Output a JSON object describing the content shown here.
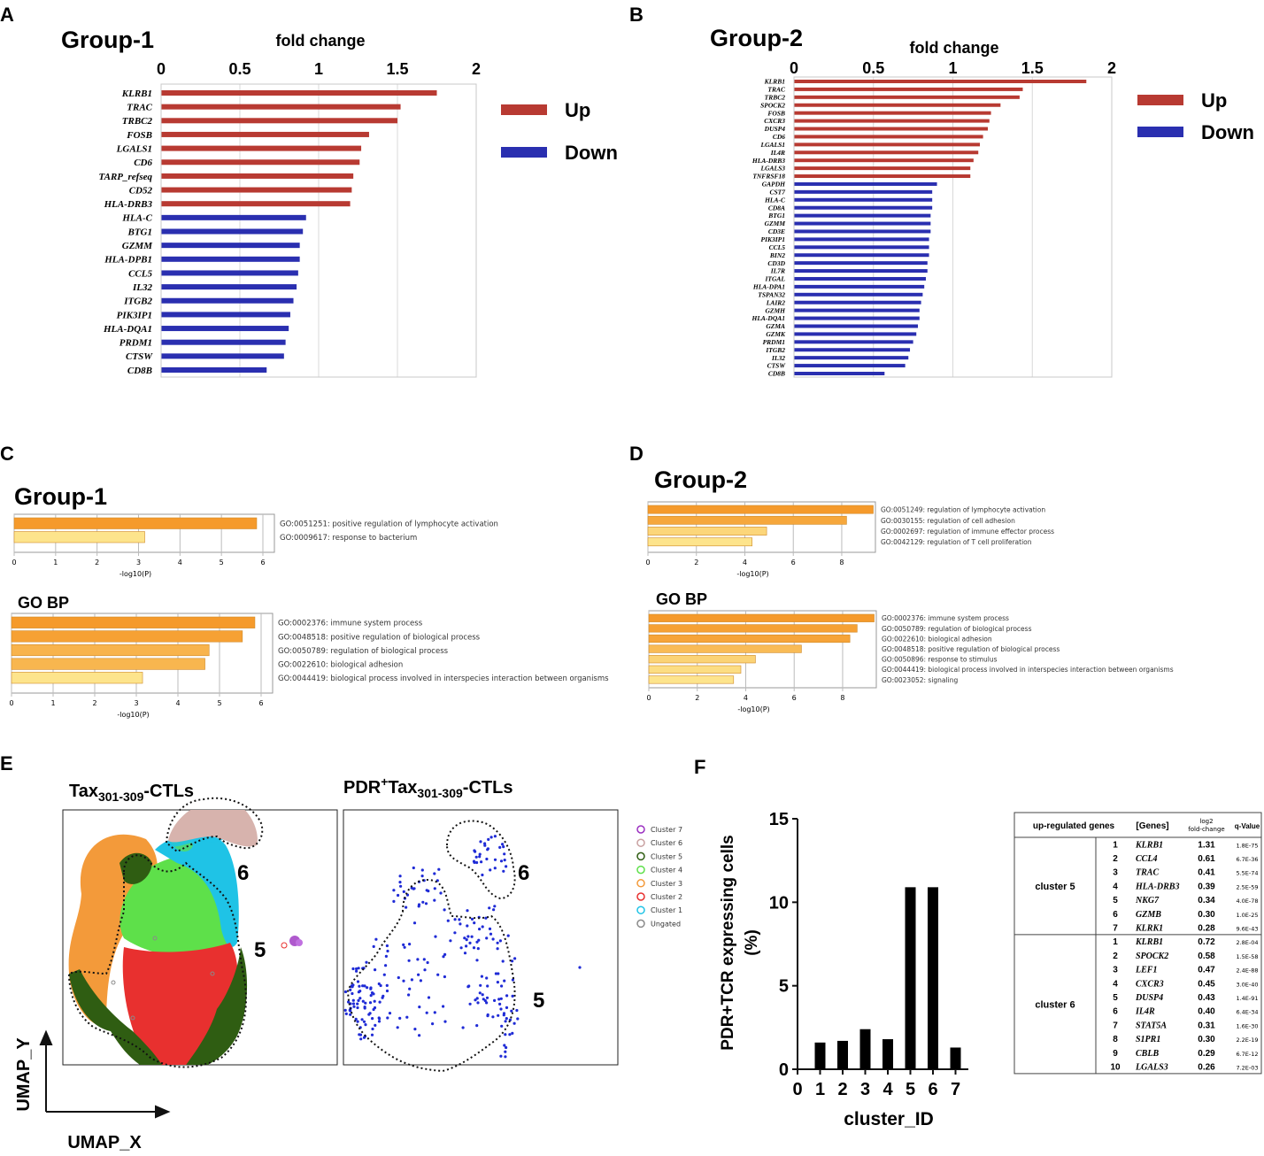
{
  "colors": {
    "up": "#b83a32",
    "down": "#2a2fb0",
    "orange_dark": "#f59a2b",
    "orange_light": "#fde48c",
    "scatter_blue": "#1f2bd6"
  },
  "panel_labels": {
    "a": "A",
    "b": "B",
    "c": "C",
    "d": "D",
    "e": "E",
    "f": "F"
  },
  "chart_data": [
    {
      "id": "A",
      "type": "bar",
      "orientation": "horizontal",
      "title": "Group-1",
      "xlabel": "fold change",
      "xticks": [
        "0",
        "0.5",
        "1",
        "1.5",
        "2"
      ],
      "xlim": [
        0,
        2
      ],
      "legend": [
        {
          "name": "Up",
          "color": "#b83a32"
        },
        {
          "name": "Down",
          "color": "#2a2fb0"
        }
      ],
      "categories": [
        "KLRB1",
        "TRAC",
        "TRBC2",
        "FOSB",
        "LGALS1",
        "CD6",
        "TARP_refseq",
        "CD52",
        "HLA-DRB3",
        "HLA-C",
        "BTG1",
        "GZMM",
        "HLA-DPB1",
        "CCL5",
        "IL32",
        "ITGB2",
        "PIK3IP1",
        "HLA-DQA1",
        "PRDM1",
        "CTSW",
        "CD8B"
      ],
      "values": [
        1.75,
        1.52,
        1.5,
        1.32,
        1.27,
        1.26,
        1.22,
        1.21,
        1.2,
        0.92,
        0.9,
        0.88,
        0.88,
        0.87,
        0.86,
        0.84,
        0.82,
        0.81,
        0.79,
        0.78,
        0.67
      ],
      "direction": [
        "up",
        "up",
        "up",
        "up",
        "up",
        "up",
        "up",
        "up",
        "up",
        "down",
        "down",
        "down",
        "down",
        "down",
        "down",
        "down",
        "down",
        "down",
        "down",
        "down",
        "down"
      ]
    },
    {
      "id": "B",
      "type": "bar",
      "orientation": "horizontal",
      "title": "Group-2",
      "xlabel": "fold change",
      "xticks": [
        "0",
        "0.5",
        "1",
        "1.5",
        "2"
      ],
      "xlim": [
        0,
        2
      ],
      "legend": [
        {
          "name": "Up",
          "color": "#b83a32"
        },
        {
          "name": "Down",
          "color": "#2a2fb0"
        }
      ],
      "categories": [
        "KLRB1",
        "TRAC",
        "TRBC2",
        "SPOCK2",
        "FOSB",
        "CXCR3",
        "DUSP4",
        "CD6",
        "LGALS1",
        "IL4R",
        "HLA-DRB3",
        "LGALS3",
        "TNFRSF18",
        "GAPDH",
        "CST7",
        "HLA-C",
        "CD8A",
        "BTG1",
        "GZMM",
        "CD3E",
        "PIK3IP1",
        "CCL5",
        "BIN2",
        "CD3D",
        "IL7R",
        "ITGAL",
        "HLA-DPA1",
        "TSPAN32",
        "LAIR2",
        "GZMH",
        "HLA-DQA1",
        "GZMA",
        "GZMK",
        "PRDM1",
        "ITGB2",
        "IL32",
        "CTSW",
        "CD8B"
      ],
      "values": [
        1.84,
        1.44,
        1.42,
        1.3,
        1.24,
        1.23,
        1.22,
        1.19,
        1.17,
        1.16,
        1.13,
        1.11,
        1.11,
        0.9,
        0.87,
        0.87,
        0.87,
        0.86,
        0.86,
        0.86,
        0.85,
        0.85,
        0.85,
        0.84,
        0.84,
        0.83,
        0.82,
        0.81,
        0.8,
        0.79,
        0.79,
        0.78,
        0.77,
        0.75,
        0.73,
        0.72,
        0.7,
        0.57
      ],
      "direction": [
        "up",
        "up",
        "up",
        "up",
        "up",
        "up",
        "up",
        "up",
        "up",
        "up",
        "up",
        "up",
        "up",
        "down",
        "down",
        "down",
        "down",
        "down",
        "down",
        "down",
        "down",
        "down",
        "down",
        "down",
        "down",
        "down",
        "down",
        "down",
        "down",
        "down",
        "down",
        "down",
        "down",
        "down",
        "down",
        "down",
        "down",
        "down"
      ]
    },
    {
      "id": "C1",
      "type": "bar",
      "orientation": "horizontal",
      "title": "Group-1",
      "xlabel": "-log10(P)",
      "xlim": [
        0,
        6
      ],
      "xticks": [
        "0",
        "1",
        "2",
        "3",
        "4",
        "5",
        "6"
      ],
      "categories": [
        "GO:0051251: positive regulation of lymphocyte activation",
        "GO:0009617: response to bacterium"
      ],
      "values": [
        5.85,
        3.15
      ]
    },
    {
      "id": "C2",
      "type": "bar",
      "orientation": "horizontal",
      "title": "GO BP",
      "xlabel": "-log10(P)",
      "xlim": [
        0,
        6
      ],
      "xticks": [
        "0",
        "1",
        "2",
        "3",
        "4",
        "5",
        "6"
      ],
      "categories": [
        "GO:0002376: immune system process",
        "GO:0048518: positive regulation of biological process",
        "GO:0050789: regulation of biological process",
        "GO:0022610: biological adhesion",
        "GO:0044419: biological process involved in interspecies interaction between organisms"
      ],
      "values": [
        5.85,
        5.55,
        4.75,
        4.65,
        3.15
      ]
    },
    {
      "id": "D1",
      "type": "bar",
      "orientation": "horizontal",
      "title": "Group-2",
      "xlabel": "-log10(P)",
      "xlim": [
        0,
        9.5
      ],
      "xticks": [
        "0",
        "2",
        "4",
        "6",
        "8"
      ],
      "categories": [
        "GO:0051249: regulation of lymphocyte activation",
        "GO:0030155: regulation of cell adhesion",
        "GO:0002697: regulation of immune effector process",
        "GO:0042129: regulation of T cell proliferation"
      ],
      "values": [
        9.3,
        8.2,
        4.9,
        4.3
      ]
    },
    {
      "id": "D2",
      "type": "bar",
      "orientation": "horizontal",
      "title": "GO BP",
      "xlabel": "-log10(P)",
      "xlim": [
        0,
        9.5
      ],
      "xticks": [
        "0",
        "2",
        "4",
        "6",
        "8"
      ],
      "categories": [
        "GO:0002376: immune system process",
        "GO:0050789: regulation of biological process",
        "GO:0022610: biological adhesion",
        "GO:0048518: positive regulation of biological process",
        "GO:0050896: response to stimulus",
        "GO:0044419: biological process involved in interspecies interaction between organisms",
        "GO:0023052: signaling"
      ],
      "values": [
        9.3,
        8.6,
        8.3,
        6.3,
        4.4,
        3.8,
        3.5
      ]
    },
    {
      "id": "E",
      "type": "scatter",
      "title_left": {
        "main": "Tax",
        "sub": "301-309",
        "tail": "-CTLs"
      },
      "title_right": {
        "pre": "PDR",
        "sup": "+",
        "main": "Tax",
        "sub": "301-309",
        "tail": "-CTLs"
      },
      "xlabel": "UMAP_X",
      "ylabel": "UMAP_Y",
      "region_labels": [
        "6",
        "5",
        "6",
        "5"
      ],
      "legend": [
        {
          "name": "Cluster 7",
          "color": "#9b30c0"
        },
        {
          "name": "Cluster 6",
          "color": "#c8a0a0"
        },
        {
          "name": "Cluster 5",
          "color": "#2f5d12"
        },
        {
          "name": "Cluster 4",
          "color": "#5ee04a"
        },
        {
          "name": "Cluster 3",
          "color": "#f39a3a"
        },
        {
          "name": "Cluster 2",
          "color": "#e8302f"
        },
        {
          "name": "Cluster 1",
          "color": "#1fc3e6"
        },
        {
          "name": "Ungated",
          "color": "#8a8a8a"
        }
      ]
    },
    {
      "id": "F",
      "type": "bar",
      "ylabel_lines": [
        "PDR+TCR expressing cells",
        "(%)"
      ],
      "xlabel": "cluster_ID",
      "categories": [
        "0",
        "1",
        "2",
        "3",
        "4",
        "5",
        "6",
        "7"
      ],
      "values": [
        0,
        1.6,
        1.7,
        2.4,
        1.8,
        10.9,
        10.9,
        1.3
      ],
      "ylim": [
        0,
        15
      ],
      "yticks": [
        "0",
        "5",
        "10",
        "15"
      ]
    }
  ],
  "table": {
    "headers": [
      "up-regulated genes",
      "[Genes]",
      "log2 fold-change",
      "q-Value"
    ],
    "groups": [
      {
        "name": "cluster 5",
        "rows": [
          {
            "n": "1",
            "gene": "KLRB1",
            "fc": "1.31",
            "q": "1.8E-75"
          },
          {
            "n": "2",
            "gene": "CCL4",
            "fc": "0.61",
            "q": "6.7E-36"
          },
          {
            "n": "3",
            "gene": "TRAC",
            "fc": "0.41",
            "q": "5.5E-74"
          },
          {
            "n": "4",
            "gene": "HLA-DRB3",
            "fc": "0.39",
            "q": "2.5E-59"
          },
          {
            "n": "5",
            "gene": "NKG7",
            "fc": "0.34",
            "q": "4.0E-78"
          },
          {
            "n": "6",
            "gene": "GZMB",
            "fc": "0.30",
            "q": "1.0E-25"
          },
          {
            "n": "7",
            "gene": "KLRK1",
            "fc": "0.28",
            "q": "9.6E-43"
          }
        ]
      },
      {
        "name": "cluster 6",
        "rows": [
          {
            "n": "1",
            "gene": "KLRB1",
            "fc": "0.72",
            "q": "2.8E-04"
          },
          {
            "n": "2",
            "gene": "SPOCK2",
            "fc": "0.58",
            "q": "1.5E-58"
          },
          {
            "n": "3",
            "gene": "LEF1",
            "fc": "0.47",
            "q": "2.4E-88"
          },
          {
            "n": "4",
            "gene": "CXCR3",
            "fc": "0.45",
            "q": "3.0E-40"
          },
          {
            "n": "5",
            "gene": "DUSP4",
            "fc": "0.43",
            "q": "1.4E-91"
          },
          {
            "n": "6",
            "gene": "IL4R",
            "fc": "0.40",
            "q": "6.4E-34"
          },
          {
            "n": "7",
            "gene": "STAT5A",
            "fc": "0.31",
            "q": "1.6E-30"
          },
          {
            "n": "8",
            "gene": "S1PR1",
            "fc": "0.30",
            "q": "2.2E-19"
          },
          {
            "n": "9",
            "gene": "CBLB",
            "fc": "0.29",
            "q": "6.7E-12"
          },
          {
            "n": "10",
            "gene": "LGALS3",
            "fc": "0.26",
            "q": "7.2E-03"
          }
        ]
      }
    ]
  }
}
